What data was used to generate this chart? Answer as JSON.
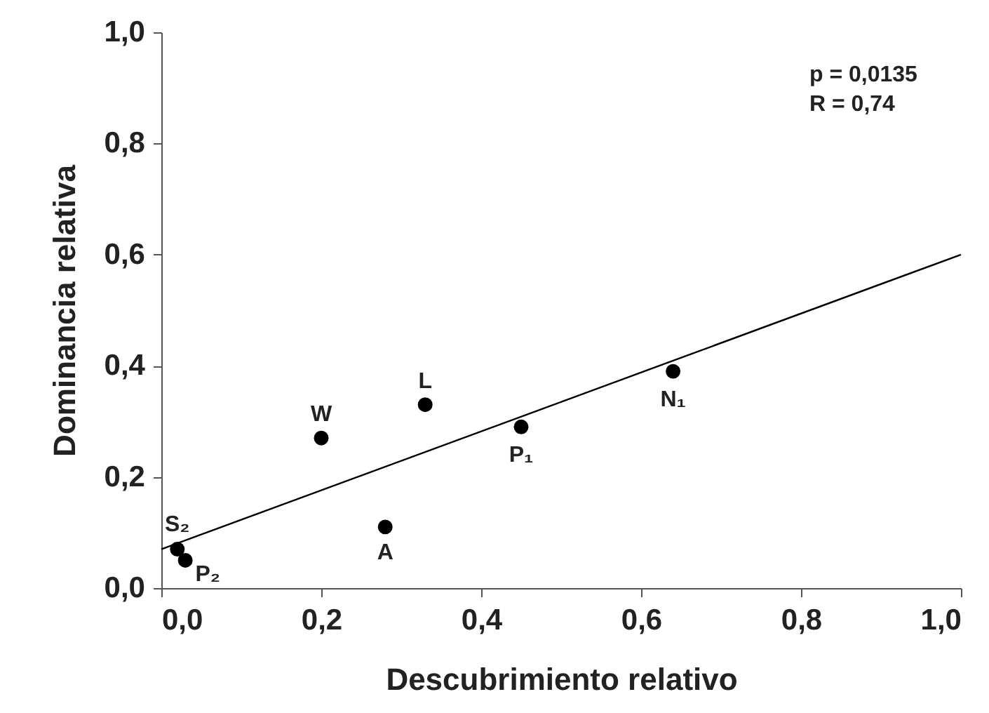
{
  "chart_data": {
    "type": "scatter",
    "xlabel": "Descubrimiento relativo",
    "ylabel": "Dominancia relativa",
    "xlim": [
      0,
      1
    ],
    "ylim": [
      0,
      1
    ],
    "xticks": [
      {
        "value": 0,
        "label": "0,0"
      },
      {
        "value": 0.2,
        "label": "0,2"
      },
      {
        "value": 0.4,
        "label": "0,4"
      },
      {
        "value": 0.6,
        "label": "0,6"
      },
      {
        "value": 0.8,
        "label": "0,8"
      },
      {
        "value": 1,
        "label": "1,0"
      }
    ],
    "yticks": [
      {
        "value": 0,
        "label": "0,0"
      },
      {
        "value": 0.2,
        "label": "0,2"
      },
      {
        "value": 0.4,
        "label": "0,4"
      },
      {
        "value": 0.6,
        "label": "0,6"
      },
      {
        "value": 0.8,
        "label": "0,8"
      },
      {
        "value": 1,
        "label": "1,0"
      }
    ],
    "series": [
      {
        "type": "scatter",
        "color": "#000000",
        "marker": "circle",
        "x": [
          0.02,
          0.03,
          0.2,
          0.28,
          0.33,
          0.45,
          0.64
        ],
        "values": [
          0.07,
          0.05,
          0.27,
          0.11,
          0.33,
          0.29,
          0.39
        ]
      },
      {
        "type": "line",
        "color": "#000000",
        "line_style": "solid",
        "x": [
          0,
          1
        ],
        "values": [
          0.07,
          0.6
        ]
      }
    ],
    "annotations": [
      {
        "text": "S₂",
        "x": 0.02,
        "y": 0.07
      },
      {
        "text": "P₂",
        "x": 0.03,
        "y": 0.05
      },
      {
        "text": "W",
        "x": 0.2,
        "y": 0.27
      },
      {
        "text": "A",
        "x": 0.28,
        "y": 0.11
      },
      {
        "text": "L",
        "x": 0.33,
        "y": 0.33
      },
      {
        "text": "P₁",
        "x": 0.45,
        "y": 0.29
      },
      {
        "text": "N₁",
        "x": 0.64,
        "y": 0.39
      },
      "p = 0,0135",
      "R = 0,74"
    ],
    "grid": false
  }
}
